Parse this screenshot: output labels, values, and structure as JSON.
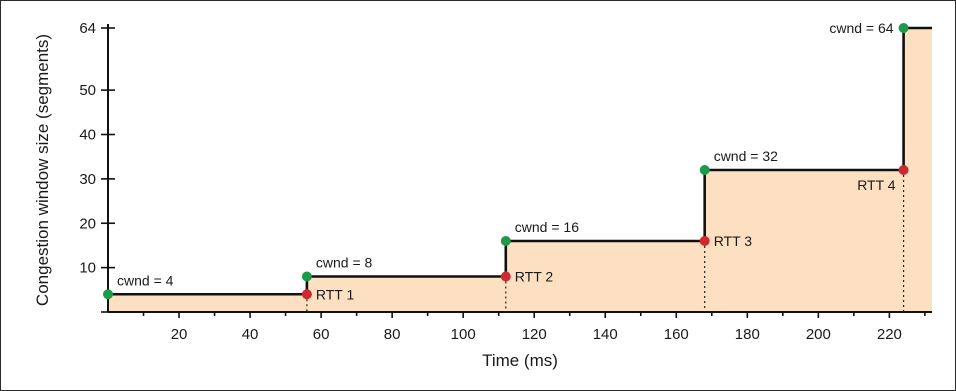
{
  "chart_data": {
    "type": "area",
    "xlabel": "Time (ms)",
    "ylabel": "Congestion window size (segments)",
    "xlim": [
      0,
      232
    ],
    "ylim": [
      0,
      64
    ],
    "x_ticks": [
      20,
      40,
      60,
      80,
      100,
      120,
      140,
      160,
      180,
      200,
      220
    ],
    "y_ticks": [
      10,
      20,
      30,
      40,
      50,
      64
    ],
    "series": [
      {
        "type": "step",
        "x": [
          0,
          56,
          56,
          112,
          112,
          168,
          168,
          224,
          224,
          232
        ],
        "y": [
          4,
          4,
          8,
          8,
          16,
          16,
          32,
          32,
          64,
          64
        ]
      }
    ],
    "points_green": [
      {
        "x": 0,
        "y": 4,
        "label": "cwnd = 4"
      },
      {
        "x": 56,
        "y": 8,
        "label": "cwnd = 8"
      },
      {
        "x": 112,
        "y": 16,
        "label": "cwnd = 16"
      },
      {
        "x": 168,
        "y": 32,
        "label": "cwnd = 32"
      },
      {
        "x": 224,
        "y": 64,
        "label": "cwnd = 64"
      }
    ],
    "points_red": [
      {
        "x": 56,
        "y": 4,
        "label": "RTT 1"
      },
      {
        "x": 112,
        "y": 8,
        "label": "RTT 2"
      },
      {
        "x": 168,
        "y": 16,
        "label": "RTT 3"
      },
      {
        "x": 224,
        "y": 32,
        "label": "RTT 4"
      }
    ],
    "colors": {
      "fill": "#fde0c2",
      "line": "#111111",
      "green": "#1e9a4c",
      "red": "#cc2a2f"
    }
  }
}
